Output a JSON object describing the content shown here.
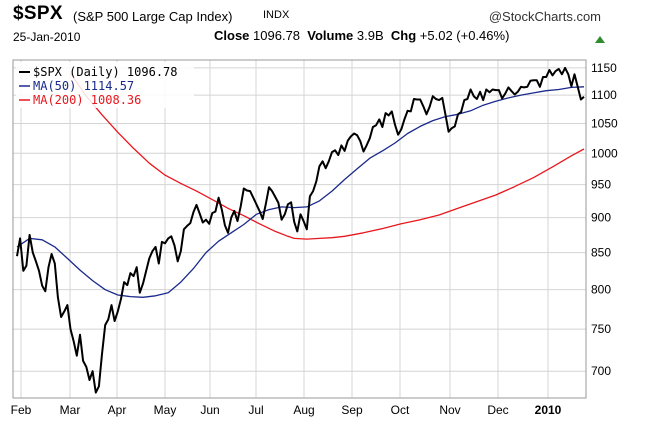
{
  "header": {
    "symbol": "$SPX",
    "description": "(S&P 500 Large Cap Index)",
    "exchange": "INDX",
    "brand": "@StockCharts.com",
    "date": "25-Jan-2010",
    "close_label": "Close",
    "close_value": "1096.78",
    "volume_label": "Volume",
    "volume_value": "3.9B",
    "chg_label": "Chg",
    "chg_value": "+5.02 (+0.46%)",
    "chg_color": "#2e8b2e"
  },
  "chart_data": {
    "type": "line",
    "x_labels": [
      "Feb",
      "Mar",
      "Apr",
      "May",
      "Jun",
      "Jul",
      "Aug",
      "Sep",
      "Oct",
      "Nov",
      "Dec",
      "2010"
    ],
    "y_ticks": [
      700,
      750,
      800,
      850,
      900,
      950,
      1000,
      1050,
      1100,
      1150
    ],
    "ylim": [
      670,
      1165
    ],
    "y_scale": "log",
    "grid": true,
    "legend_position": "top-left",
    "series": [
      {
        "name": "$SPX (Daily) 1096.78",
        "color": "#000000",
        "width": 2,
        "values": [
          [
            0,
            845
          ],
          [
            1,
            870
          ],
          [
            2,
            825
          ],
          [
            3,
            832
          ],
          [
            4,
            875
          ],
          [
            5,
            850
          ],
          [
            6,
            838
          ],
          [
            7,
            825
          ],
          [
            8,
            805
          ],
          [
            9,
            798
          ],
          [
            10,
            830
          ],
          [
            11,
            848
          ],
          [
            12,
            835
          ],
          [
            13,
            790
          ],
          [
            14,
            765
          ],
          [
            15,
            772
          ],
          [
            16,
            780
          ],
          [
            17,
            750
          ],
          [
            18,
            735
          ],
          [
            19,
            718
          ],
          [
            20,
            743
          ],
          [
            21,
            712
          ],
          [
            22,
            705
          ],
          [
            23,
            690
          ],
          [
            24,
            700
          ],
          [
            25,
            676
          ],
          [
            26,
            683
          ],
          [
            27,
            720
          ],
          [
            28,
            755
          ],
          [
            29,
            762
          ],
          [
            30,
            780
          ],
          [
            31,
            760
          ],
          [
            32,
            772
          ],
          [
            33,
            788
          ],
          [
            34,
            810
          ],
          [
            35,
            806
          ],
          [
            36,
            822
          ],
          [
            37,
            818
          ],
          [
            38,
            830
          ],
          [
            39,
            796
          ],
          [
            40,
            808
          ],
          [
            41,
            825
          ],
          [
            42,
            842
          ],
          [
            43,
            852
          ],
          [
            44,
            858
          ],
          [
            45,
            835
          ],
          [
            46,
            865
          ],
          [
            47,
            863
          ],
          [
            48,
            870
          ],
          [
            49,
            873
          ],
          [
            50,
            860
          ],
          [
            51,
            838
          ],
          [
            52,
            852
          ],
          [
            53,
            883
          ],
          [
            54,
            888
          ],
          [
            55,
            892
          ],
          [
            56,
            908
          ],
          [
            57,
            919
          ],
          [
            58,
            906
          ],
          [
            59,
            893
          ],
          [
            60,
            897
          ],
          [
            61,
            891
          ],
          [
            62,
            907
          ],
          [
            63,
            909
          ],
          [
            64,
            930
          ],
          [
            65,
            912
          ],
          [
            66,
            889
          ],
          [
            67,
            878
          ],
          [
            68,
            900
          ],
          [
            69,
            910
          ],
          [
            70,
            895
          ],
          [
            71,
            917
          ],
          [
            72,
            944
          ],
          [
            73,
            941
          ],
          [
            74,
            940
          ],
          [
            75,
            930
          ],
          [
            76,
            920
          ],
          [
            77,
            910
          ],
          [
            78,
            898
          ],
          [
            79,
            921
          ],
          [
            80,
            946
          ],
          [
            81,
            940
          ],
          [
            82,
            931
          ],
          [
            83,
            922
          ],
          [
            84,
            897
          ],
          [
            85,
            905
          ],
          [
            86,
            920
          ],
          [
            87,
            923
          ],
          [
            88,
            894
          ],
          [
            89,
            880
          ],
          [
            90,
            905
          ],
          [
            91,
            895
          ],
          [
            92,
            883
          ],
          [
            93,
            932
          ],
          [
            94,
            940
          ],
          [
            95,
            955
          ],
          [
            96,
            979
          ],
          [
            97,
            987
          ],
          [
            98,
            976
          ],
          [
            99,
            987
          ],
          [
            100,
            1002
          ],
          [
            101,
            1005
          ],
          [
            102,
            997
          ],
          [
            103,
            1013
          ],
          [
            104,
            1004
          ],
          [
            105,
            1021
          ],
          [
            106,
            1028
          ],
          [
            107,
            1033
          ],
          [
            108,
            1030
          ],
          [
            109,
            1020
          ],
          [
            110,
            1003
          ],
          [
            111,
            1013
          ],
          [
            112,
            1025
          ],
          [
            113,
            1044
          ],
          [
            114,
            1047
          ],
          [
            115,
            1057
          ],
          [
            116,
            1044
          ],
          [
            117,
            1068
          ],
          [
            118,
            1064
          ],
          [
            119,
            1071
          ],
          [
            120,
            1048
          ],
          [
            121,
            1031
          ],
          [
            122,
            1040
          ],
          [
            123,
            1057
          ],
          [
            124,
            1072
          ],
          [
            125,
            1071
          ],
          [
            126,
            1093
          ],
          [
            127,
            1092
          ],
          [
            128,
            1092
          ],
          [
            129,
            1080
          ],
          [
            130,
            1066
          ],
          [
            131,
            1079
          ],
          [
            132,
            1098
          ],
          [
            133,
            1093
          ],
          [
            134,
            1091
          ],
          [
            135,
            1095
          ],
          [
            136,
            1066
          ],
          [
            137,
            1036
          ],
          [
            138,
            1042
          ],
          [
            139,
            1045
          ],
          [
            140,
            1066
          ],
          [
            141,
            1070
          ],
          [
            142,
            1091
          ],
          [
            143,
            1093
          ],
          [
            144,
            1110
          ],
          [
            145,
            1098
          ],
          [
            146,
            1093
          ],
          [
            147,
            1106
          ],
          [
            148,
            1091
          ],
          [
            149,
            1110
          ],
          [
            150,
            1105
          ],
          [
            151,
            1110
          ],
          [
            152,
            1109
          ],
          [
            153,
            1109
          ],
          [
            154,
            1094
          ],
          [
            155,
            1103
          ],
          [
            156,
            1114
          ],
          [
            157,
            1107
          ],
          [
            158,
            1101
          ],
          [
            159,
            1106
          ],
          [
            160,
            1115
          ],
          [
            161,
            1114
          ],
          [
            162,
            1115
          ],
          [
            163,
            1126
          ],
          [
            164,
            1127
          ],
          [
            165,
            1127
          ],
          [
            166,
            1115
          ],
          [
            167,
            1133
          ],
          [
            168,
            1133
          ],
          [
            169,
            1146
          ],
          [
            170,
            1136
          ],
          [
            171,
            1144
          ],
          [
            172,
            1148
          ],
          [
            173,
            1138
          ],
          [
            174,
            1150
          ],
          [
            175,
            1138
          ],
          [
            176,
            1116
          ],
          [
            177,
            1138
          ],
          [
            178,
            1115
          ],
          [
            179,
            1092
          ],
          [
            180,
            1097
          ]
        ]
      },
      {
        "name": "MA(50) 1114.57",
        "color": "#1a2a8c",
        "width": 1.3,
        "values": [
          [
            0,
            858
          ],
          [
            4,
            870
          ],
          [
            8,
            868
          ],
          [
            12,
            858
          ],
          [
            16,
            842
          ],
          [
            20,
            826
          ],
          [
            24,
            812
          ],
          [
            28,
            800
          ],
          [
            32,
            793
          ],
          [
            36,
            791
          ],
          [
            40,
            790
          ],
          [
            44,
            792
          ],
          [
            48,
            796
          ],
          [
            52,
            810
          ],
          [
            56,
            828
          ],
          [
            60,
            850
          ],
          [
            64,
            866
          ],
          [
            68,
            878
          ],
          [
            72,
            890
          ],
          [
            76,
            905
          ],
          [
            80,
            912
          ],
          [
            84,
            916
          ],
          [
            88,
            915
          ],
          [
            92,
            916
          ],
          [
            96,
            925
          ],
          [
            100,
            940
          ],
          [
            104,
            958
          ],
          [
            108,
            975
          ],
          [
            112,
            992
          ],
          [
            116,
            1004
          ],
          [
            120,
            1017
          ],
          [
            124,
            1033
          ],
          [
            128,
            1045
          ],
          [
            132,
            1055
          ],
          [
            136,
            1062
          ],
          [
            140,
            1066
          ],
          [
            144,
            1072
          ],
          [
            148,
            1082
          ],
          [
            152,
            1089
          ],
          [
            156,
            1095
          ],
          [
            160,
            1100
          ],
          [
            164,
            1104
          ],
          [
            168,
            1108
          ],
          [
            172,
            1110
          ],
          [
            176,
            1114
          ],
          [
            180,
            1115
          ]
        ]
      },
      {
        "name": "MA(200) 1008.36",
        "color": "#e8171d",
        "width": 1.3,
        "values": [
          [
            17,
            1140
          ],
          [
            22,
            1098
          ],
          [
            27,
            1065
          ],
          [
            32,
            1035
          ],
          [
            37,
            1008
          ],
          [
            42,
            984
          ],
          [
            47,
            965
          ],
          [
            52,
            952
          ],
          [
            57,
            940
          ],
          [
            62,
            927
          ],
          [
            67,
            914
          ],
          [
            72,
            903
          ],
          [
            77,
            891
          ],
          [
            82,
            880
          ],
          [
            86,
            873
          ],
          [
            88,
            870
          ],
          [
            92,
            869
          ],
          [
            96,
            870
          ],
          [
            100,
            871
          ],
          [
            104,
            873
          ],
          [
            110,
            878
          ],
          [
            116,
            884
          ],
          [
            122,
            891
          ],
          [
            128,
            897
          ],
          [
            134,
            904
          ],
          [
            140,
            914
          ],
          [
            146,
            924
          ],
          [
            152,
            934
          ],
          [
            158,
            947
          ],
          [
            164,
            961
          ],
          [
            170,
            978
          ],
          [
            176,
            996
          ],
          [
            180,
            1007
          ]
        ]
      }
    ]
  }
}
